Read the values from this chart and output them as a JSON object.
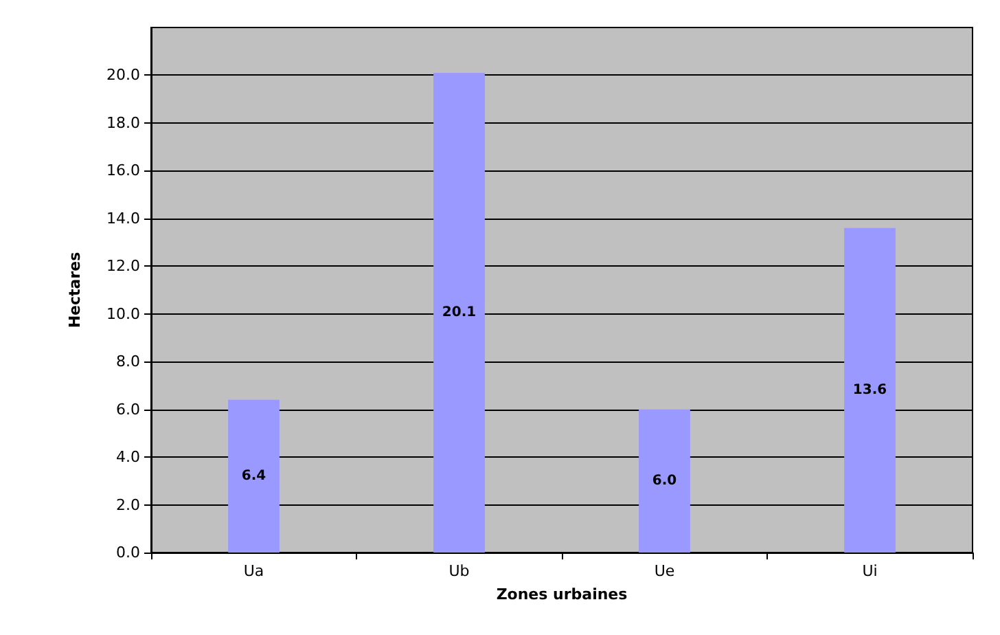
{
  "chart_data": {
    "type": "bar",
    "xlabel": "Zones urbaines",
    "ylabel": "Hectares",
    "categories": [
      "Ua",
      "Ub",
      "Ue",
      "Ui"
    ],
    "values": [
      6.4,
      20.1,
      6.0,
      13.6
    ],
    "value_labels": [
      "6.4",
      "20.1",
      "6.0",
      "13.6"
    ],
    "color": "#9999ff",
    "ylim": [
      0,
      22
    ],
    "yticks": [
      {
        "value": 0,
        "label": "0.0"
      },
      {
        "value": 2,
        "label": "2.0"
      },
      {
        "value": 4,
        "label": "4.0"
      },
      {
        "value": 6,
        "label": "6.0"
      },
      {
        "value": 8,
        "label": "8.0"
      },
      {
        "value": 10,
        "label": "10.0"
      },
      {
        "value": 12,
        "label": "12.0"
      },
      {
        "value": 14,
        "label": "14.0"
      },
      {
        "value": 16,
        "label": "16.0"
      },
      {
        "value": 18,
        "label": "18.0"
      },
      {
        "value": 20,
        "label": "20.0"
      }
    ],
    "grid": "y"
  }
}
